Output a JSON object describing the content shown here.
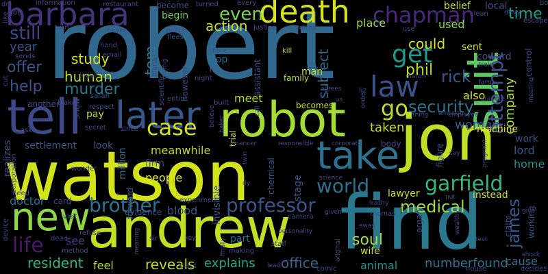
{
  "words": [
    {
      "text": "robert",
      "color": "#31688e"
    },
    {
      "text": "watson",
      "color": "#d2e21b"
    },
    {
      "text": "find",
      "color": "#2a788e"
    },
    {
      "text": "andrew",
      "color": "#c2df23"
    },
    {
      "text": "jon",
      "color": "#bddf26"
    },
    {
      "text": "robot",
      "color": "#a5db36"
    },
    {
      "text": "tell",
      "color": "#3e4989"
    },
    {
      "text": "new",
      "color": "#8fd744"
    },
    {
      "text": "suit",
      "color": "#5ec962"
    },
    {
      "text": "take",
      "color": "#2c728e"
    },
    {
      "text": "death",
      "color": "#d8e219"
    },
    {
      "text": "later",
      "color": "#38588c"
    },
    {
      "text": "barbara",
      "color": "#46337e"
    },
    {
      "text": "law",
      "color": "#3b528b"
    },
    {
      "text": "chapman",
      "color": "#482878"
    },
    {
      "text": "garfield",
      "color": "#35b779"
    },
    {
      "text": "professor",
      "color": "#3b528b"
    },
    {
      "text": "brother",
      "color": "#2c728e"
    },
    {
      "text": "attempt",
      "color": "#3b528b"
    },
    {
      "text": "case",
      "color": "#d2e21b"
    },
    {
      "text": "world",
      "color": "#2c728e"
    },
    {
      "text": "life",
      "color": "#48186a"
    },
    {
      "text": "security",
      "color": "#2c728e"
    },
    {
      "text": "get",
      "color": "#1f9a8a"
    },
    {
      "text": "go",
      "color": "#bddf26"
    },
    {
      "text": "medical",
      "color": "#9fda3a"
    },
    {
      "text": "james",
      "color": "#375a8c"
    },
    {
      "text": "even",
      "color": "#7ad151"
    },
    {
      "text": "still",
      "color": "#3e4989"
    },
    {
      "text": "time",
      "color": "#1f9e89"
    },
    {
      "text": "soul",
      "color": "#addc30"
    },
    {
      "text": "company",
      "color": "#a0da39"
    },
    {
      "text": "rick",
      "color": "#38588c"
    },
    {
      "text": "phil",
      "color": "#bddf26"
    },
    {
      "text": "tom",
      "color": "#2c728e"
    },
    {
      "text": "murder",
      "color": "#2a788e"
    },
    {
      "text": "human",
      "color": "#bddf26"
    },
    {
      "text": "study",
      "color": "#d2e21b"
    },
    {
      "text": "help",
      "color": "#3b528b"
    },
    {
      "text": "offer",
      "color": "#39558c"
    },
    {
      "text": "subject",
      "color": "#31688e"
    },
    {
      "text": "could",
      "color": "#d2e21b"
    },
    {
      "text": "woman",
      "color": "#3b528b"
    },
    {
      "text": "taken",
      "color": "#bddf26"
    },
    {
      "text": "action",
      "color": "#cae11f"
    },
    {
      "text": "meet",
      "color": "#b5de2b"
    },
    {
      "text": "numberfound",
      "color": "#2e6e8e"
    },
    {
      "text": "office",
      "color": "#32648e"
    },
    {
      "text": "reveals",
      "color": "#bddf26"
    },
    {
      "text": "explains",
      "color": "#22a884"
    },
    {
      "text": "resident",
      "color": "#2fb47c"
    },
    {
      "text": "people",
      "color": "#dde318"
    },
    {
      "text": "doctor",
      "color": "#2e6e8e"
    },
    {
      "text": "meanwhile",
      "color": "#bddf26"
    },
    {
      "text": "also",
      "color": "#d5e21a"
    },
    {
      "text": "cause",
      "color": "#2c728e"
    },
    {
      "text": "lawyer",
      "color": "#c8e020"
    },
    {
      "text": "instead",
      "color": "#d2e21b"
    },
    {
      "text": "lord",
      "color": "#3b528b"
    },
    {
      "text": "home",
      "color": "#21918c"
    },
    {
      "text": "year",
      "color": "#39568c"
    },
    {
      "text": "animal",
      "color": "#21918c"
    },
    {
      "text": "feel",
      "color": "#addc30"
    },
    {
      "text": "see",
      "color": "#433e85"
    },
    {
      "text": "blood",
      "color": "#3b528b"
    },
    {
      "text": "machine",
      "color": "#e5e419"
    },
    {
      "text": "work",
      "color": "#3e4989"
    },
    {
      "text": "pay",
      "color": "#bddf26"
    },
    {
      "text": "used",
      "color": "#90d743"
    },
    {
      "text": "place",
      "color": "#90d743"
    },
    {
      "text": "belief",
      "color": "#c2df23"
    },
    {
      "text": "local",
      "color": "#3e4989"
    },
    {
      "text": "sent",
      "color": "#c8e020"
    },
    {
      "text": "coward",
      "color": "#3b528b"
    },
    {
      "text": "wife",
      "color": "#c8e020"
    },
    {
      "text": "control",
      "color": "#3e4989"
    },
    {
      "text": "begin",
      "color": "#6ccd5a"
    },
    {
      "text": "becomes",
      "color": "#c2df23"
    },
    {
      "text": "stop",
      "color": "#2c728e"
    },
    {
      "text": "look",
      "color": "#3b528b"
    },
    {
      "text": "settlement",
      "color": "#3b528b"
    },
    {
      "text": "million",
      "color": "#31688e"
    },
    {
      "text": "stage",
      "color": "#3b528b"
    },
    {
      "text": "firm",
      "color": "#3b528b"
    },
    {
      "text": "realizes",
      "color": "#3b528b"
    },
    {
      "text": "however",
      "color": "#3e4989"
    },
    {
      "text": "assistant",
      "color": "#3b528b"
    },
    {
      "text": "chemical",
      "color": "#3b528b"
    },
    {
      "text": "invisible",
      "color": "#3b528b"
    },
    {
      "text": "card",
      "color": "#3e4989"
    },
    {
      "text": "forward",
      "color": "#31688e"
    },
    {
      "text": "evidence",
      "color": "#3b528b"
    },
    {
      "text": "another",
      "color": "#3e4989"
    },
    {
      "text": "man",
      "color": "#c2df23"
    },
    {
      "text": "family",
      "color": "#b5de2b"
    },
    {
      "text": "part",
      "color": "#2c728e"
    },
    {
      "text": "organ",
      "color": "#3e4989"
    },
    {
      "text": "figure",
      "color": "#3b528b"
    },
    {
      "text": "claim",
      "color": "#3e4989"
    },
    {
      "text": "working",
      "color": "#3b528b"
    },
    {
      "text": "trial",
      "color": "#c2df23"
    },
    {
      "text": "show",
      "color": "#3e4989"
    },
    {
      "text": "body",
      "color": "#3e4989"
    },
    {
      "text": "secret",
      "color": "#3e4989"
    },
    {
      "text": "order",
      "color": "#3e4989"
    },
    {
      "text": "kill",
      "color": "#b5de2b"
    },
    {
      "text": "face",
      "color": "#3e4989"
    },
    {
      "text": "night",
      "color": "#3e4989"
    },
    {
      "text": "become",
      "color": "#3e4989"
    },
    {
      "text": "built",
      "color": "#3e4989"
    },
    {
      "text": "liz",
      "color": "#3e4989"
    },
    {
      "text": "thomas",
      "color": "#3e4989"
    },
    {
      "text": "kathy",
      "color": "#3e4989"
    },
    {
      "text": "staff",
      "color": "#3e4989"
    },
    {
      "text": "sir",
      "color": "#3e4989"
    },
    {
      "text": "refuse",
      "color": "#3e4989"
    },
    {
      "text": "making",
      "color": "#3e4989"
    },
    {
      "text": "experiment",
      "color": "#3e4989"
    },
    {
      "text": "camera",
      "color": "#3e4989"
    },
    {
      "text": "visit",
      "color": "#3e4989"
    },
    {
      "text": "dead",
      "color": "#3e4989"
    },
    {
      "text": "method",
      "color": "#3e4989"
    },
    {
      "text": "email",
      "color": "#3e4989"
    },
    {
      "text": "decides",
      "color": "#3e4989"
    },
    {
      "text": "comic",
      "color": "#3e4989"
    },
    {
      "text": "lead",
      "color": "#3e4989"
    },
    {
      "text": "class",
      "color": "#3e4989"
    },
    {
      "text": "house",
      "color": "#3e4989"
    },
    {
      "text": "sends",
      "color": "#3e4989"
    },
    {
      "text": "asks",
      "color": "#3e4989"
    },
    {
      "text": "wonder",
      "color": "#3e4989"
    },
    {
      "text": "corporation",
      "color": "#3e4989"
    },
    {
      "text": "device",
      "color": "#3e4989"
    },
    {
      "text": "need",
      "color": "#3e4989"
    },
    {
      "text": "cut",
      "color": "#3e4989"
    },
    {
      "text": "blake",
      "color": "#3e4989"
    },
    {
      "text": "legal",
      "color": "#3e4989"
    },
    {
      "text": "sarah",
      "color": "#3e4989"
    },
    {
      "text": "respect",
      "color": "#3e4989"
    },
    {
      "text": "since",
      "color": "#3e4989"
    },
    {
      "text": "entire",
      "color": "#3e4989"
    },
    {
      "text": "scientific",
      "color": "#3e4989"
    },
    {
      "text": "diana",
      "color": "#3e4989"
    },
    {
      "text": "giving",
      "color": "#3e4989"
    },
    {
      "text": "police",
      "color": "#3e4989"
    },
    {
      "text": "flees",
      "color": "#3e4989"
    },
    {
      "text": "justice",
      "color": "#3e4989"
    },
    {
      "text": "warns",
      "color": "#3e4989"
    },
    {
      "text": "turned",
      "color": "#3e4989"
    },
    {
      "text": "every",
      "color": "#3e4989"
    },
    {
      "text": "restaurant",
      "color": "#3e4989"
    },
    {
      "text": "information",
      "color": "#3e4989"
    },
    {
      "text": "job",
      "color": "#3e4989"
    },
    {
      "text": "like",
      "color": "#3e4989"
    },
    {
      "text": "turn",
      "color": "#3e4989"
    },
    {
      "text": "hand",
      "color": "#3e4989"
    },
    {
      "text": "never",
      "color": "#3e4989"
    },
    {
      "text": "clean",
      "color": "#3e4989"
    },
    {
      "text": "davy",
      "color": "#3e4989"
    },
    {
      "text": "board",
      "color": "#3e4989"
    },
    {
      "text": "escape",
      "color": "#3e4989"
    },
    {
      "text": "use",
      "color": "#3e4989"
    },
    {
      "text": "martin",
      "color": "#3e4989"
    },
    {
      "text": "train",
      "color": "#3e4989"
    },
    {
      "text": "farm",
      "color": "#3e4989"
    },
    {
      "text": "suicide",
      "color": "#3e4989"
    },
    {
      "text": "emotion",
      "color": "#3e4989"
    },
    {
      "text": "employee",
      "color": "#3e4989"
    },
    {
      "text": "thing",
      "color": "#3e4989"
    },
    {
      "text": "meeting",
      "color": "#3e4989"
    },
    {
      "text": "agrees",
      "color": "#3e4989"
    },
    {
      "text": "corporate",
      "color": "#3e4989"
    },
    {
      "text": "cancer",
      "color": "#3e4989"
    },
    {
      "text": "responsible",
      "color": "#3e4989"
    },
    {
      "text": "twin",
      "color": "#3e4989"
    },
    {
      "text": "call",
      "color": "#3e4989"
    },
    {
      "text": "dy",
      "color": "#3e4989"
    },
    {
      "text": "science",
      "color": "#3e4989"
    },
    {
      "text": "say",
      "color": "#3e4989"
    },
    {
      "text": "pregnant",
      "color": "#3e4989"
    },
    {
      "text": "put",
      "color": "#3e4989"
    },
    {
      "text": "give",
      "color": "#3e4989"
    },
    {
      "text": "test",
      "color": "#3e4989"
    },
    {
      "text": "wealthy",
      "color": "#3e4989"
    },
    {
      "text": "away",
      "color": "#3e4989"
    },
    {
      "text": "given",
      "color": "#3e4989"
    },
    {
      "text": "original",
      "color": "#3e4989"
    },
    {
      "text": "personality",
      "color": "#3e4989"
    },
    {
      "text": "finally",
      "color": "#3e4989"
    },
    {
      "text": "key",
      "color": "#3e4989"
    },
    {
      "text": "believe",
      "color": "#3e4989"
    },
    {
      "text": "baker",
      "color": "#3e4989"
    },
    {
      "text": "meaning",
      "color": "#3e4989"
    },
    {
      "text": "dr",
      "color": "#3e4989"
    },
    {
      "text": "us",
      "color": "#3e4989"
    },
    {
      "text": "n",
      "color": "#3e4989"
    },
    {
      "text": "shock",
      "color": "#3e4989"
    }
  ]
}
